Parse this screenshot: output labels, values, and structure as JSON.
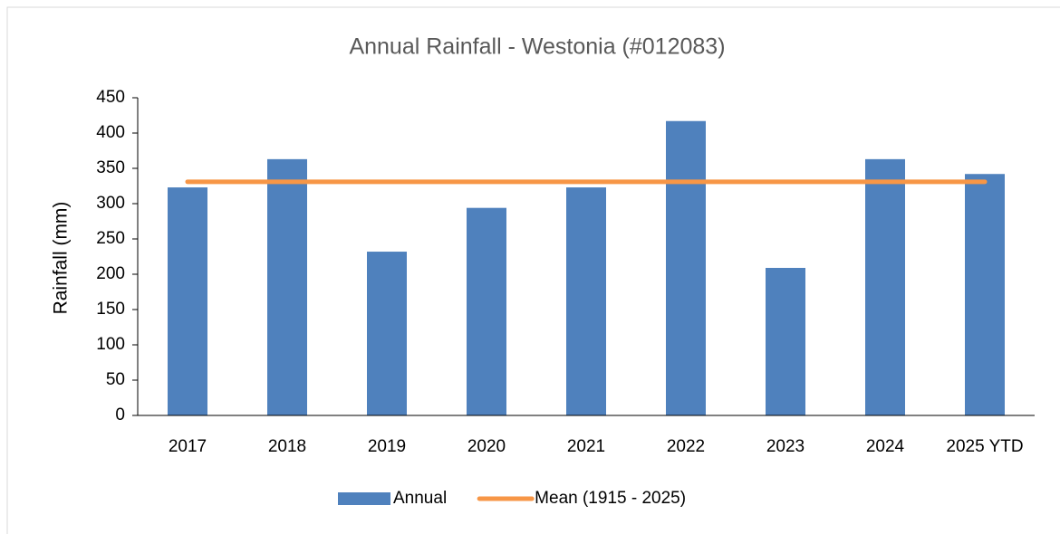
{
  "chart_data": {
    "type": "bar",
    "title": "Annual Rainfall - Westonia (#012083)",
    "y_label": "Rainfall (mm)",
    "categories": [
      "2017",
      "2018",
      "2019",
      "2020",
      "2021",
      "2022",
      "2023",
      "2024",
      "2025 YTD"
    ],
    "series": [
      {
        "name": "Annual",
        "type": "bar",
        "color": "#4f81bd",
        "values": [
          323,
          363,
          232,
          294,
          323,
          417,
          209,
          363,
          342
        ]
      },
      {
        "name": "Mean (1915 - 2025)",
        "type": "line",
        "color": "#f79646",
        "values": [
          331,
          331,
          331,
          331,
          331,
          331,
          331,
          331,
          331
        ]
      }
    ],
    "ylim": [
      0,
      450
    ],
    "yticks": [
      0,
      50,
      100,
      150,
      200,
      250,
      300,
      350,
      400,
      450
    ],
    "grid": false
  }
}
